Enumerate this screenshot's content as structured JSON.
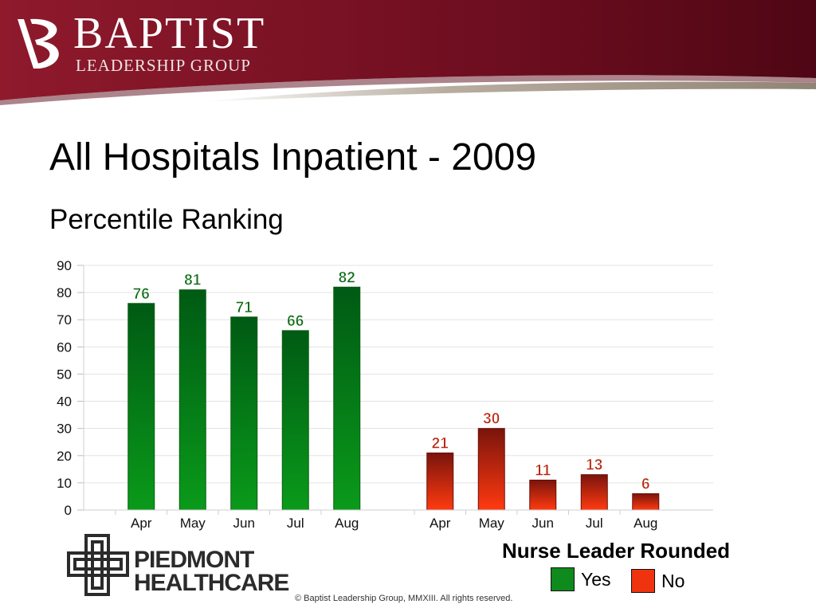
{
  "header": {
    "brand_name": "BAPTIST",
    "brand_sub": "LEADERSHIP GROUP",
    "colors": {
      "maroon": "#7a0f22",
      "tan": "#a39a8d"
    }
  },
  "slide": {
    "title": "All Hospitals Inpatient - 2009",
    "subtitle": "Percentile Ranking"
  },
  "chart_data": {
    "type": "bar",
    "title": "",
    "xlabel": "",
    "ylabel": "",
    "ylim": [
      0,
      90
    ],
    "yticks": [
      0,
      10,
      20,
      30,
      40,
      50,
      60,
      70,
      80,
      90
    ],
    "grid": true,
    "groups": [
      {
        "name": "Yes",
        "color": "#0f8a1c",
        "label_color": "#0b6a12",
        "categories": [
          "Apr",
          "May",
          "Jun",
          "Jul",
          "Aug"
        ],
        "values": [
          76,
          81,
          71,
          66,
          82
        ]
      },
      {
        "name": "No",
        "color": "#e8300e",
        "label_color": "#b8260d",
        "categories": [
          "Apr",
          "May",
          "Jun",
          "Jul",
          "Aug"
        ],
        "values": [
          21,
          30,
          11,
          13,
          6
        ]
      }
    ],
    "legend": {
      "title": "Nurse Leader Rounded",
      "entries": [
        "Yes",
        "No"
      ],
      "placement": "bottom-right"
    }
  },
  "footer": {
    "partner_line1": "PIEDMONT",
    "partner_line2": "HEALTHCARE",
    "copyright": "© Baptist Leadership Group, MMXIII.  All rights reserved."
  }
}
